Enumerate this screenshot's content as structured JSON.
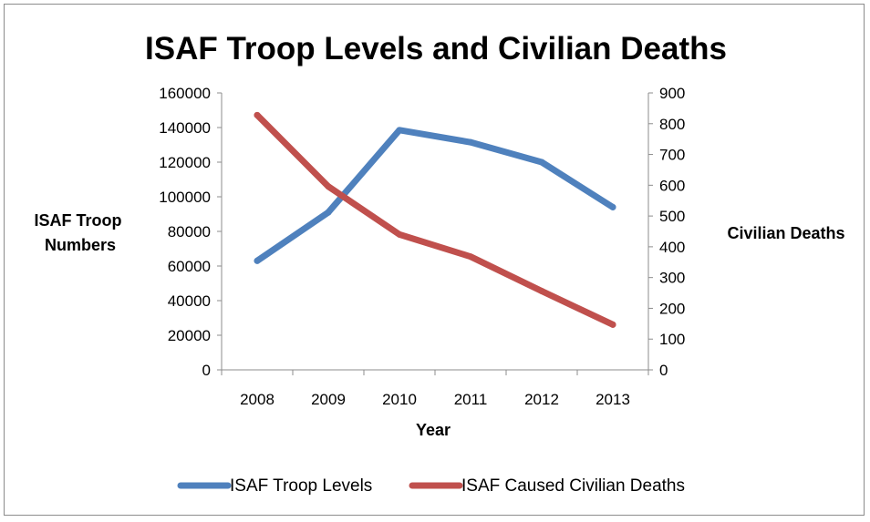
{
  "chart_data": {
    "type": "line",
    "title": "ISAF Troop Levels and Civilian Deaths",
    "xlabel": "Year",
    "ylabel_left": "ISAF Troop Numbers",
    "ylabel_right": "Civilian Deaths",
    "categories": [
      "2008",
      "2009",
      "2010",
      "2011",
      "2012",
      "2013"
    ],
    "y_left": {
      "min": 0,
      "max": 160000,
      "step": 20000,
      "ticks": [
        "0",
        "20000",
        "40000",
        "60000",
        "80000",
        "100000",
        "120000",
        "140000",
        "160000"
      ]
    },
    "y_right": {
      "min": 0,
      "max": 900,
      "step": 100,
      "ticks": [
        "0",
        "100",
        "200",
        "300",
        "400",
        "500",
        "600",
        "700",
        "800",
        "900"
      ]
    },
    "grid": false,
    "legend_position": "bottom",
    "series": [
      {
        "name": "ISAF Troop Levels",
        "axis": "left",
        "color": "#4f81bd",
        "values": [
          63000,
          91000,
          138500,
          131500,
          120000,
          94000
        ]
      },
      {
        "name": "ISAF Caused Civilian Deaths",
        "axis": "right",
        "color": "#c0504d",
        "values": [
          828,
          596,
          440,
          368,
          256,
          147
        ]
      }
    ]
  }
}
